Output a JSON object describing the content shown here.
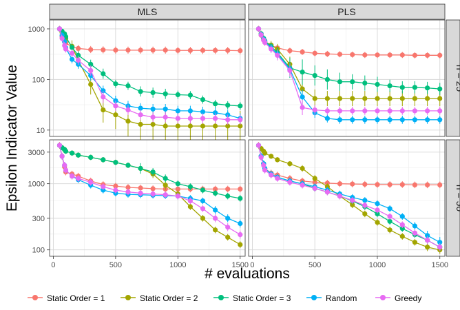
{
  "chart_data": {
    "type": "line",
    "ylabel": "Epsilon Indicator Value",
    "xlabel": "# evaluations",
    "y_scale": "log",
    "grid": true,
    "legend_position": "bottom",
    "panel_columns": [
      "MLS",
      "PLS"
    ],
    "panel_rows": [
      "n = 25",
      "n = 50"
    ],
    "x_ticks": [
      0,
      500,
      1000,
      1500
    ],
    "x_tick_labels": [
      "0",
      "500",
      "1000",
      "1500"
    ],
    "xlim": [
      -30,
      1540
    ],
    "rows": [
      {
        "ylim": [
          7.5,
          1500
        ],
        "y_ticks": [
          10,
          100,
          1000
        ],
        "y_tick_labels": [
          "10",
          "100",
          "1000"
        ]
      },
      {
        "ylim": [
          80,
          4600
        ],
        "y_ticks": [
          100,
          300,
          1000,
          3000
        ],
        "y_tick_labels": [
          "100",
          "300",
          "1000",
          "3000"
        ]
      }
    ],
    "series_names": [
      "Static Order = 1",
      "Static Order = 2",
      "Static Order = 3",
      "Random",
      "Greedy"
    ],
    "colors": [
      "#F8766D",
      "#A3A500",
      "#00BF7D",
      "#00B0F6",
      "#E76BF3"
    ],
    "x": [
      50,
      70,
      90,
      100,
      150,
      200,
      300,
      400,
      500,
      600,
      700,
      800,
      900,
      1000,
      1100,
      1200,
      1300,
      1400,
      1500
    ],
    "panels": [
      {
        "column": "MLS",
        "row": "n = 25",
        "series": [
          {
            "name": "Static Order = 1",
            "values": [
              1000,
              700,
              560,
              520,
              450,
              410,
              390,
              385,
              380,
              380,
              380,
              380,
              380,
              375,
              375,
              375,
              375,
              375,
              370
            ],
            "err": [
              0.06,
              0.06,
              0.07,
              0.07,
              0.07,
              0.07,
              0.07,
              0.07,
              0.07,
              0.07,
              0.07,
              0.07,
              0.07,
              0.07,
              0.07,
              0.07,
              0.07,
              0.07,
              0.07
            ]
          },
          {
            "name": "Static Order = 2",
            "values": [
              1000,
              850,
              730,
              650,
              450,
              240,
              80,
              25,
              20,
              15,
              13,
              13,
              12,
              12,
              12,
              12,
              12,
              12,
              12
            ],
            "err": [
              0.05,
              0.06,
              0.07,
              0.08,
              0.12,
              0.15,
              0.2,
              0.25,
              0.28,
              0.3,
              0.3,
              0.3,
              0.3,
              0.3,
              0.3,
              0.3,
              0.3,
              0.3,
              0.3
            ]
          },
          {
            "name": "Static Order = 3",
            "values": [
              1000,
              900,
              800,
              700,
              430,
              300,
              200,
              130,
              82,
              75,
              58,
              55,
              52,
              50,
              49,
              40,
              33,
              31,
              30
            ],
            "err": [
              0.05,
              0.05,
              0.05,
              0.06,
              0.08,
              0.08,
              0.09,
              0.1,
              0.08,
              0.08,
              0.1,
              0.1,
              0.1,
              0.08,
              0.08,
              0.08,
              0.08,
              0.08,
              0.08
            ]
          },
          {
            "name": "Random",
            "values": [
              1000,
              750,
              560,
              420,
              250,
              200,
              120,
              60,
              38,
              30,
              27,
              26,
              26,
              24,
              24,
              23,
              22,
              20,
              17
            ],
            "err": [
              0.05,
              0.06,
              0.07,
              0.07,
              0.08,
              0.09,
              0.1,
              0.1,
              0.1,
              0.1,
              0.1,
              0.1,
              0.1,
              0.1,
              0.1,
              0.1,
              0.1,
              0.1,
              0.1
            ]
          },
          {
            "name": "Greedy",
            "values": [
              1000,
              650,
              470,
              400,
              330,
              240,
              150,
              45,
              30,
              25,
              20,
              18,
              18,
              17,
              17,
              17,
              17,
              16,
              16
            ],
            "err": [
              0.05,
              0.06,
              0.07,
              0.07,
              0.08,
              0.09,
              0.1,
              0.12,
              0.1,
              0.1,
              0.1,
              0.1,
              0.1,
              0.1,
              0.1,
              0.1,
              0.1,
              0.1,
              0.1
            ]
          }
        ]
      },
      {
        "column": "PLS",
        "row": "n = 25",
        "series": [
          {
            "name": "Static Order = 1",
            "values": [
              1000,
              750,
              600,
              540,
              470,
              420,
              370,
              350,
              330,
              320,
              315,
              310,
              305,
              305,
              305,
              305,
              300,
              300,
              300
            ],
            "err": [
              0.06,
              0.06,
              0.06,
              0.06,
              0.06,
              0.06,
              0.06,
              0.06,
              0.06,
              0.06,
              0.06,
              0.06,
              0.06,
              0.06,
              0.06,
              0.06,
              0.06,
              0.06,
              0.06
            ]
          },
          {
            "name": "Static Order = 2",
            "values": [
              1000,
              800,
              640,
              560,
              480,
              400,
              200,
              65,
              42,
              42,
              42,
              42,
              42,
              42,
              42,
              42,
              42,
              42,
              42
            ],
            "err": [
              0.05,
              0.06,
              0.07,
              0.07,
              0.08,
              0.1,
              0.15,
              0.3,
              0.18,
              0.15,
              0.15,
              0.15,
              0.15,
              0.15,
              0.15,
              0.15,
              0.15,
              0.15,
              0.15
            ]
          },
          {
            "name": "Static Order = 3",
            "values": [
              1000,
              800,
              650,
              580,
              450,
              340,
              170,
              140,
              120,
              100,
              90,
              90,
              85,
              80,
              75,
              70,
              70,
              68,
              65
            ],
            "err": [
              0.05,
              0.05,
              0.06,
              0.06,
              0.08,
              0.1,
              0.2,
              0.25,
              0.2,
              0.2,
              0.18,
              0.15,
              0.15,
              0.15,
              0.12,
              0.12,
              0.12,
              0.12,
              0.12
            ]
          },
          {
            "name": "Random",
            "values": [
              1000,
              780,
              620,
              560,
              420,
              320,
              160,
              45,
              22,
              17,
              16,
              16,
              16,
              16,
              16,
              16,
              16,
              16,
              16
            ],
            "err": [
              0.05,
              0.06,
              0.06,
              0.07,
              0.08,
              0.1,
              0.12,
              0.15,
              0.1,
              0.08,
              0.08,
              0.08,
              0.08,
              0.08,
              0.08,
              0.08,
              0.08,
              0.08,
              0.08
            ]
          },
          {
            "name": "Greedy",
            "values": [
              1000,
              760,
              600,
              540,
              400,
              300,
              150,
              28,
              25,
              24,
              24,
              24,
              24,
              24,
              24,
              24,
              24,
              24,
              24
            ],
            "err": [
              0.05,
              0.06,
              0.06,
              0.07,
              0.08,
              0.1,
              0.12,
              0.15,
              0.1,
              0.08,
              0.08,
              0.08,
              0.08,
              0.08,
              0.08,
              0.08,
              0.08,
              0.08,
              0.08
            ]
          }
        ]
      },
      {
        "column": "MLS",
        "row": "n = 50",
        "series": [
          {
            "name": "Static Order = 1",
            "values": [
              3800,
              2600,
              1800,
              1500,
              1400,
              1300,
              1100,
              970,
              920,
              880,
              860,
              840,
              830,
              830,
              830,
              830,
              830,
              830,
              830
            ],
            "err": [
              0.05,
              0.05,
              0.05,
              0.05,
              0.05,
              0.05,
              0.05,
              0.05,
              0.05,
              0.05,
              0.05,
              0.05,
              0.05,
              0.05,
              0.05,
              0.05,
              0.05,
              0.05,
              0.05
            ]
          },
          {
            "name": "Static Order = 2",
            "values": [
              3800,
              3500,
              3300,
              3100,
              2900,
              2700,
              2500,
              2300,
              2100,
              1900,
              1700,
              1400,
              950,
              700,
              450,
              300,
              200,
              155,
              120
            ],
            "err": [
              0.04,
              0.04,
              0.04,
              0.04,
              0.04,
              0.04,
              0.04,
              0.04,
              0.04,
              0.04,
              0.05,
              0.06,
              0.07,
              0.06,
              0.05,
              0.05,
              0.05,
              0.05,
              0.05
            ]
          },
          {
            "name": "Static Order = 3",
            "values": [
              3800,
              3500,
              3300,
              3100,
              2900,
              2700,
              2500,
              2300,
              2100,
              1900,
              1700,
              1500,
              1200,
              1000,
              900,
              800,
              720,
              650,
              600
            ],
            "err": [
              0.04,
              0.04,
              0.04,
              0.04,
              0.04,
              0.04,
              0.04,
              0.04,
              0.04,
              0.04,
              0.08,
              0.06,
              0.06,
              0.05,
              0.05,
              0.05,
              0.05,
              0.05,
              0.05
            ]
          },
          {
            "name": "Random",
            "values": [
              3800,
              2600,
              1900,
              1600,
              1300,
              1150,
              950,
              800,
              720,
              690,
              680,
              670,
              660,
              650,
              600,
              550,
              400,
              300,
              250
            ],
            "err": [
              0.04,
              0.05,
              0.05,
              0.05,
              0.05,
              0.05,
              0.05,
              0.05,
              0.05,
              0.05,
              0.05,
              0.05,
              0.05,
              0.05,
              0.05,
              0.05,
              0.06,
              0.06,
              0.06
            ]
          },
          {
            "name": "Greedy",
            "values": [
              3800,
              2600,
              1900,
              1600,
              1300,
              1200,
              1050,
              900,
              800,
              750,
              720,
              700,
              680,
              650,
              550,
              420,
              300,
              220,
              170
            ],
            "err": [
              0.04,
              0.05,
              0.05,
              0.05,
              0.05,
              0.05,
              0.05,
              0.05,
              0.05,
              0.05,
              0.05,
              0.05,
              0.05,
              0.05,
              0.05,
              0.05,
              0.06,
              0.06,
              0.06
            ]
          }
        ]
      },
      {
        "column": "PLS",
        "row": "n = 50",
        "series": [
          {
            "name": "Static Order = 1",
            "values": [
              3800,
              2600,
              2000,
              1700,
              1450,
              1350,
              1200,
              1100,
              1050,
              1020,
              1000,
              990,
              980,
              970,
              970,
              970,
              960,
              960,
              960
            ],
            "err": [
              0.05,
              0.05,
              0.05,
              0.05,
              0.05,
              0.05,
              0.05,
              0.05,
              0.05,
              0.05,
              0.05,
              0.05,
              0.05,
              0.05,
              0.05,
              0.05,
              0.05,
              0.05,
              0.05
            ]
          },
          {
            "name": "Static Order = 2",
            "values": [
              3800,
              3400,
              3100,
              2900,
              2600,
              2300,
              2000,
              1700,
              1200,
              900,
              650,
              480,
              350,
              260,
              200,
              160,
              130,
              110,
              100
            ],
            "err": [
              0.04,
              0.04,
              0.04,
              0.04,
              0.04,
              0.04,
              0.04,
              0.05,
              0.05,
              0.05,
              0.05,
              0.05,
              0.05,
              0.05,
              0.05,
              0.05,
              0.05,
              0.06,
              0.06
            ]
          },
          {
            "name": "Static Order = 3",
            "values": [
              3800,
              2600,
              2000,
              1700,
              1400,
              1250,
              1100,
              1000,
              850,
              750,
              650,
              550,
              450,
              350,
              270,
              210,
              170,
              140,
              110
            ],
            "err": [
              0.04,
              0.05,
              0.05,
              0.05,
              0.05,
              0.05,
              0.05,
              0.05,
              0.05,
              0.05,
              0.05,
              0.05,
              0.05,
              0.05,
              0.05,
              0.05,
              0.05,
              0.06,
              0.06
            ]
          },
          {
            "name": "Random",
            "values": [
              3800,
              2600,
              2000,
              1700,
              1400,
              1250,
              1100,
              1000,
              900,
              800,
              700,
              620,
              560,
              500,
              420,
              320,
              230,
              165,
              130
            ],
            "err": [
              0.04,
              0.05,
              0.05,
              0.05,
              0.05,
              0.05,
              0.05,
              0.05,
              0.05,
              0.05,
              0.05,
              0.05,
              0.05,
              0.05,
              0.05,
              0.05,
              0.06,
              0.07,
              0.08
            ]
          },
          {
            "name": "Greedy",
            "values": [
              3800,
              2500,
              1900,
              1600,
              1350,
              1200,
              1050,
              950,
              850,
              750,
              650,
              560,
              470,
              400,
              320,
              240,
              180,
              140,
              110
            ],
            "err": [
              0.04,
              0.05,
              0.05,
              0.05,
              0.05,
              0.05,
              0.05,
              0.05,
              0.05,
              0.05,
              0.05,
              0.05,
              0.05,
              0.05,
              0.05,
              0.05,
              0.06,
              0.06,
              0.06
            ]
          }
        ]
      }
    ]
  }
}
